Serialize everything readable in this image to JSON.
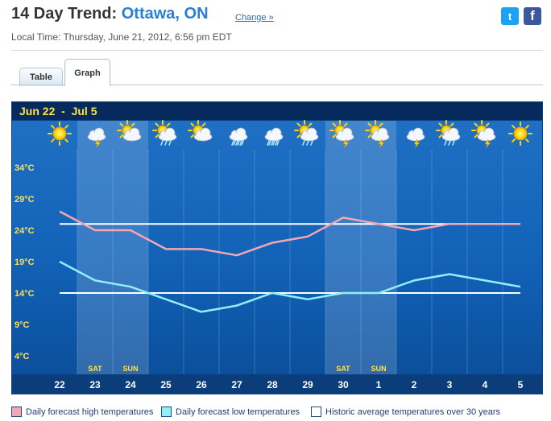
{
  "header": {
    "title_prefix": "14 Day Trend:",
    "city": "Ottawa, ON",
    "change_link": "Change »",
    "local_time": "Local Time: Thursday, June 21, 2012, 6:56 pm EDT"
  },
  "social": {
    "twitter_glyph": "t",
    "facebook_glyph": "f"
  },
  "tabs": [
    {
      "label": "Table",
      "active": false
    },
    {
      "label": "Graph",
      "active": true
    }
  ],
  "chart_data": {
    "type": "line",
    "title": "Jun 22  -  Jul 5",
    "categories": [
      "22",
      "23",
      "24",
      "25",
      "26",
      "27",
      "28",
      "29",
      "30",
      "1",
      "2",
      "3",
      "4",
      "5"
    ],
    "weekend_labels": [
      {
        "day": "23",
        "label": "SAT"
      },
      {
        "day": "24",
        "label": "SUN"
      },
      {
        "day": "30",
        "label": "SAT"
      },
      {
        "day": "1",
        "label": "SUN"
      }
    ],
    "weather_icons": [
      "sunny-icon",
      "thunderstorm-icon",
      "partly-cloudy-icon",
      "partly-cloudy-showers-icon",
      "partly-cloudy-icon",
      "showers-icon",
      "showers-icon",
      "partly-cloudy-showers-icon",
      "partly-cloudy-thunderstorm-icon",
      "partly-cloudy-thunderstorm-icon",
      "thunderstorm-icon",
      "partly-cloudy-showers-icon",
      "partly-cloudy-thunderstorm-icon",
      "sunny-icon"
    ],
    "y_ticks": [
      "34°C",
      "29°C",
      "24°C",
      "19°C",
      "14°C",
      "9°C",
      "4°C"
    ],
    "y_tick_values": [
      34,
      29,
      24,
      19,
      14,
      9,
      4
    ],
    "ylim": [
      0,
      38
    ],
    "series": [
      {
        "name": "Daily forecast high temperatures",
        "color": "#f4a6b4",
        "values": [
          27,
          24,
          24,
          21,
          21,
          20,
          22,
          23,
          26,
          25,
          24,
          25,
          25,
          25
        ]
      },
      {
        "name": "Daily forecast low temperatures",
        "color": "#8ff0f8",
        "values": [
          19,
          16,
          15,
          13,
          11,
          12,
          14,
          13,
          14,
          14,
          16,
          17,
          16,
          15
        ]
      }
    ],
    "historic_high": 25,
    "historic_low": 14
  },
  "legend": [
    {
      "label": "Daily forecast high temperatures",
      "color": "#f4a6b4"
    },
    {
      "label": "Daily forecast low temperatures",
      "color": "#8ff0f8"
    },
    {
      "label": "Historic average temperatures over 30 years",
      "color": "#ffffff"
    }
  ]
}
